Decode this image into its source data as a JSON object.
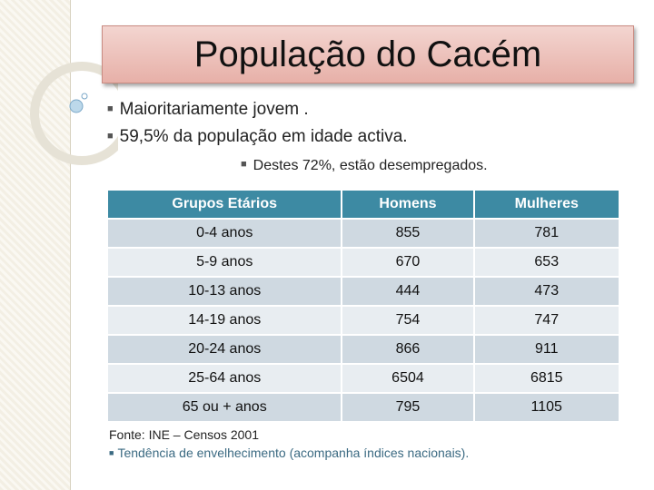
{
  "title": "População do Cacém",
  "bullets": [
    "Maioritariamente jovem .",
    "59,5% da população em idade activa."
  ],
  "sub_bullet": "Destes 72%, estão desempregados.",
  "table": {
    "header": [
      "Grupos  Etários",
      "Homens",
      "Mulheres"
    ],
    "rows": [
      [
        "0-4 anos",
        "855",
        "781"
      ],
      [
        "5-9 anos",
        "670",
        "653"
      ],
      [
        "10-13 anos",
        "444",
        "473"
      ],
      [
        "14-19 anos",
        "754",
        "747"
      ],
      [
        "20-24 anos",
        "866",
        "911"
      ],
      [
        "25-64 anos",
        "6504",
        "6815"
      ],
      [
        "65 ou + anos",
        "795",
        "1105"
      ]
    ]
  },
  "source": "Fonte: INE – Censos 2001",
  "note": "Tendência de envelhecimento (acompanha índices nacionais)."
}
